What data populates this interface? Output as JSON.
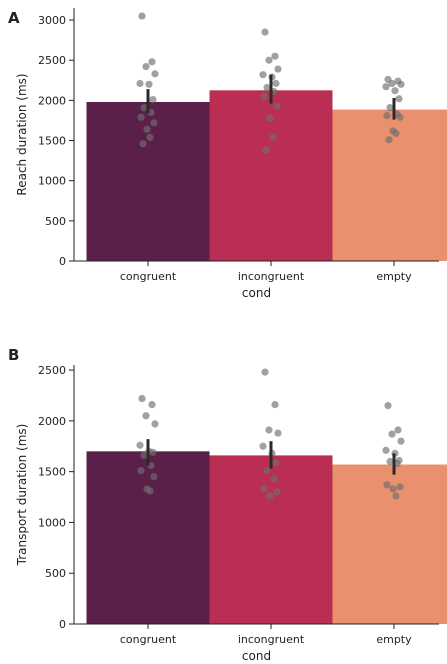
{
  "chart_data": [
    {
      "type": "bar",
      "panel": "A",
      "categories": [
        "congruent",
        "incongruent",
        "empty"
      ],
      "values": [
        1980,
        2125,
        1885
      ],
      "ci_low": [
        1840,
        1960,
        1760
      ],
      "ci_high": [
        2140,
        2320,
        2030
      ],
      "points": [
        [
          3050,
          2480,
          2420,
          2330,
          2210,
          2200,
          2010,
          1910,
          1850,
          1790,
          1720,
          1640,
          1540,
          1460
        ],
        [
          2850,
          2550,
          2500,
          2390,
          2320,
          2290,
          2210,
          2160,
          2110,
          2050,
          1930,
          1780,
          1540,
          1380
        ],
        [
          2260,
          2240,
          2210,
          2200,
          2170,
          2120,
          2020,
          1910,
          1830,
          1810,
          1790,
          1620,
          1590,
          1510
        ]
      ],
      "colors": [
        "#5a2049",
        "#bb2e54",
        "#e9906f"
      ],
      "xlabel": "cond",
      "ylabel": "Reach duration (ms)",
      "yticks": [
        0,
        500,
        1000,
        1500,
        2000,
        2500,
        3000
      ],
      "ylim": [
        0,
        3150
      ],
      "grid": false
    },
    {
      "type": "bar",
      "panel": "B",
      "categories": [
        "congruent",
        "incongruent",
        "empty"
      ],
      "values": [
        1700,
        1660,
        1570
      ],
      "ci_low": [
        1560,
        1530,
        1470
      ],
      "ci_high": [
        1820,
        1800,
        1680
      ],
      "points": [
        [
          2220,
          2160,
          2050,
          1970,
          1760,
          1700,
          1690,
          1660,
          1560,
          1510,
          1450,
          1330,
          1310
        ],
        [
          2480,
          2160,
          1910,
          1880,
          1750,
          1680,
          1590,
          1510,
          1430,
          1330,
          1300,
          1260
        ],
        [
          2150,
          1910,
          1870,
          1800,
          1710,
          1680,
          1610,
          1600,
          1580,
          1370,
          1350,
          1330,
          1260
        ]
      ],
      "colors": [
        "#5a2049",
        "#bb2e54",
        "#e9906f"
      ],
      "xlabel": "cond",
      "ylabel": "Transport duration (ms)",
      "yticks": [
        0,
        500,
        1000,
        1500,
        2000,
        2500
      ],
      "ylim": [
        0,
        2550
      ],
      "grid": false
    }
  ]
}
